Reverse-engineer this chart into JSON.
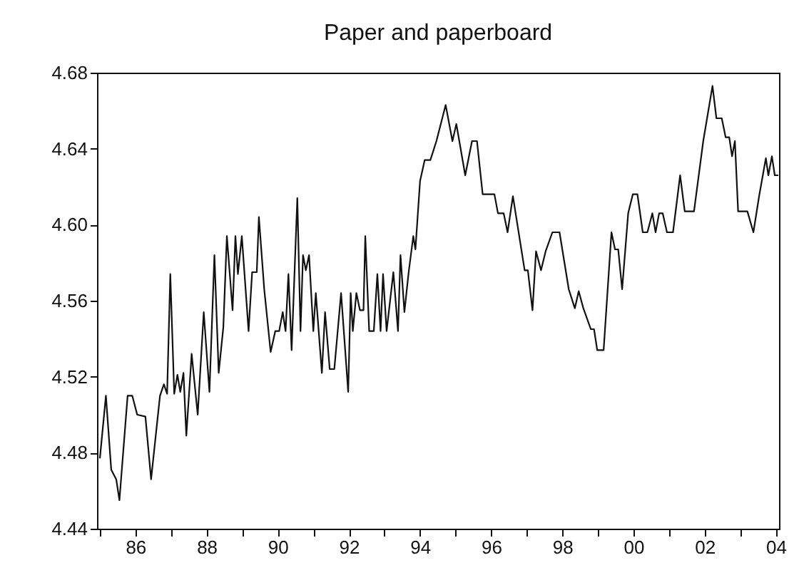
{
  "chart_data": {
    "type": "line",
    "title": "Paper and paperboard",
    "x": [
      1985.0,
      1985.17,
      1985.32,
      1985.46,
      1985.55,
      1985.78,
      1985.91,
      1986.05,
      1986.28,
      1986.44,
      1986.69,
      1986.8,
      1986.89,
      1986.98,
      1987.09,
      1987.18,
      1987.26,
      1987.35,
      1987.43,
      1987.58,
      1987.75,
      1987.92,
      1988.08,
      1988.22,
      1988.34,
      1988.47,
      1988.57,
      1988.73,
      1988.81,
      1988.88,
      1988.99,
      1989.18,
      1989.28,
      1989.41,
      1989.47,
      1989.62,
      1989.8,
      1989.93,
      1990.04,
      1990.14,
      1990.22,
      1990.3,
      1990.39,
      1990.55,
      1990.64,
      1990.71,
      1990.79,
      1990.88,
      1991.0,
      1991.07,
      1991.24,
      1991.33,
      1991.46,
      1991.59,
      1991.78,
      1991.98,
      1992.05,
      1992.11,
      1992.21,
      1992.31,
      1992.41,
      1992.46,
      1992.57,
      1992.7,
      1992.8,
      1992.89,
      1992.96,
      1993.06,
      1993.25,
      1993.38,
      1993.45,
      1993.56,
      1993.68,
      1993.81,
      1993.87,
      1994.0,
      1994.13,
      1994.29,
      1994.46,
      1994.72,
      1994.91,
      1995.02,
      1995.27,
      1995.46,
      1995.6,
      1995.76,
      1996.09,
      1996.19,
      1996.35,
      1996.46,
      1996.61,
      1996.94,
      1997.03,
      1997.16,
      1997.26,
      1997.4,
      1997.53,
      1997.72,
      1997.92,
      1998.18,
      1998.35,
      1998.46,
      1998.59,
      1998.8,
      1998.89,
      1998.98,
      1999.16,
      1999.38,
      1999.48,
      1999.57,
      1999.68,
      1999.85,
      1999.98,
      2000.11,
      2000.26,
      2000.39,
      2000.53,
      2000.62,
      2000.72,
      2000.82,
      2000.94,
      2001.11,
      2001.31,
      2001.44,
      2001.7,
      2001.96,
      2002.22,
      2002.33,
      2002.48,
      2002.59,
      2002.69,
      2002.77,
      2002.85,
      2002.94,
      2003.2,
      2003.37,
      2003.53,
      2003.72,
      2003.79,
      2003.89,
      2003.97,
      2004.07
    ],
    "series": [
      {
        "color": "#111111",
        "values": [
          4.477,
          4.51,
          4.471,
          4.466,
          4.455,
          4.51,
          4.51,
          4.5,
          4.499,
          4.466,
          4.51,
          4.516,
          4.511,
          4.574,
          4.511,
          4.521,
          4.512,
          4.522,
          4.489,
          4.532,
          4.5,
          4.554,
          4.512,
          4.584,
          4.522,
          4.546,
          4.594,
          4.555,
          4.594,
          4.574,
          4.594,
          4.544,
          4.575,
          4.575,
          4.604,
          4.566,
          4.533,
          4.544,
          4.544,
          4.554,
          4.544,
          4.574,
          4.534,
          4.614,
          4.544,
          4.584,
          4.576,
          4.584,
          4.544,
          4.564,
          4.522,
          4.554,
          4.524,
          4.524,
          4.564,
          4.512,
          4.564,
          4.544,
          4.564,
          4.555,
          4.555,
          4.594,
          4.544,
          4.544,
          4.574,
          4.544,
          4.574,
          4.544,
          4.575,
          4.544,
          4.584,
          4.554,
          4.575,
          4.594,
          4.587,
          4.623,
          4.634,
          4.634,
          4.644,
          4.663,
          4.644,
          4.653,
          4.626,
          4.644,
          4.644,
          4.616,
          4.616,
          4.606,
          4.606,
          4.596,
          4.615,
          4.576,
          4.576,
          4.555,
          4.586,
          4.576,
          4.586,
          4.596,
          4.596,
          4.566,
          4.556,
          4.565,
          4.556,
          4.545,
          4.545,
          4.534,
          4.534,
          4.596,
          4.587,
          4.587,
          4.566,
          4.606,
          4.616,
          4.616,
          4.596,
          4.596,
          4.606,
          4.596,
          4.606,
          4.606,
          4.596,
          4.596,
          4.626,
          4.607,
          4.607,
          4.644,
          4.673,
          4.656,
          4.656,
          4.646,
          4.646,
          4.636,
          4.644,
          4.607,
          4.607,
          4.596,
          4.615,
          4.635,
          4.626,
          4.636,
          4.626,
          4.626
        ]
      }
    ],
    "xlim": [
      1984.92,
      2004.09
    ],
    "xticks": [
      {
        "value": 1985,
        "label": null
      },
      {
        "value": 1986,
        "label": "86"
      },
      {
        "value": 1987,
        "label": null
      },
      {
        "value": 1988,
        "label": "88"
      },
      {
        "value": 1989,
        "label": null
      },
      {
        "value": 1990,
        "label": "90"
      },
      {
        "value": 1991,
        "label": null
      },
      {
        "value": 1992,
        "label": "92"
      },
      {
        "value": 1993,
        "label": null
      },
      {
        "value": 1994,
        "label": "94"
      },
      {
        "value": 1995,
        "label": null
      },
      {
        "value": 1996,
        "label": "96"
      },
      {
        "value": 1997,
        "label": null
      },
      {
        "value": 1998,
        "label": "98"
      },
      {
        "value": 1999,
        "label": null
      },
      {
        "value": 2000,
        "label": "00"
      },
      {
        "value": 2001,
        "label": null
      },
      {
        "value": 2002,
        "label": "02"
      },
      {
        "value": 2003,
        "label": null
      },
      {
        "value": 2004,
        "label": "04"
      }
    ],
    "ylim": [
      4.44,
      4.68
    ],
    "yticks": [
      4.44,
      4.48,
      4.52,
      4.56,
      {
        "value": 4.6,
        "label": "4.60"
      },
      4.64,
      4.68
    ],
    "grid": false,
    "marker": "none",
    "line_style": "solid"
  }
}
